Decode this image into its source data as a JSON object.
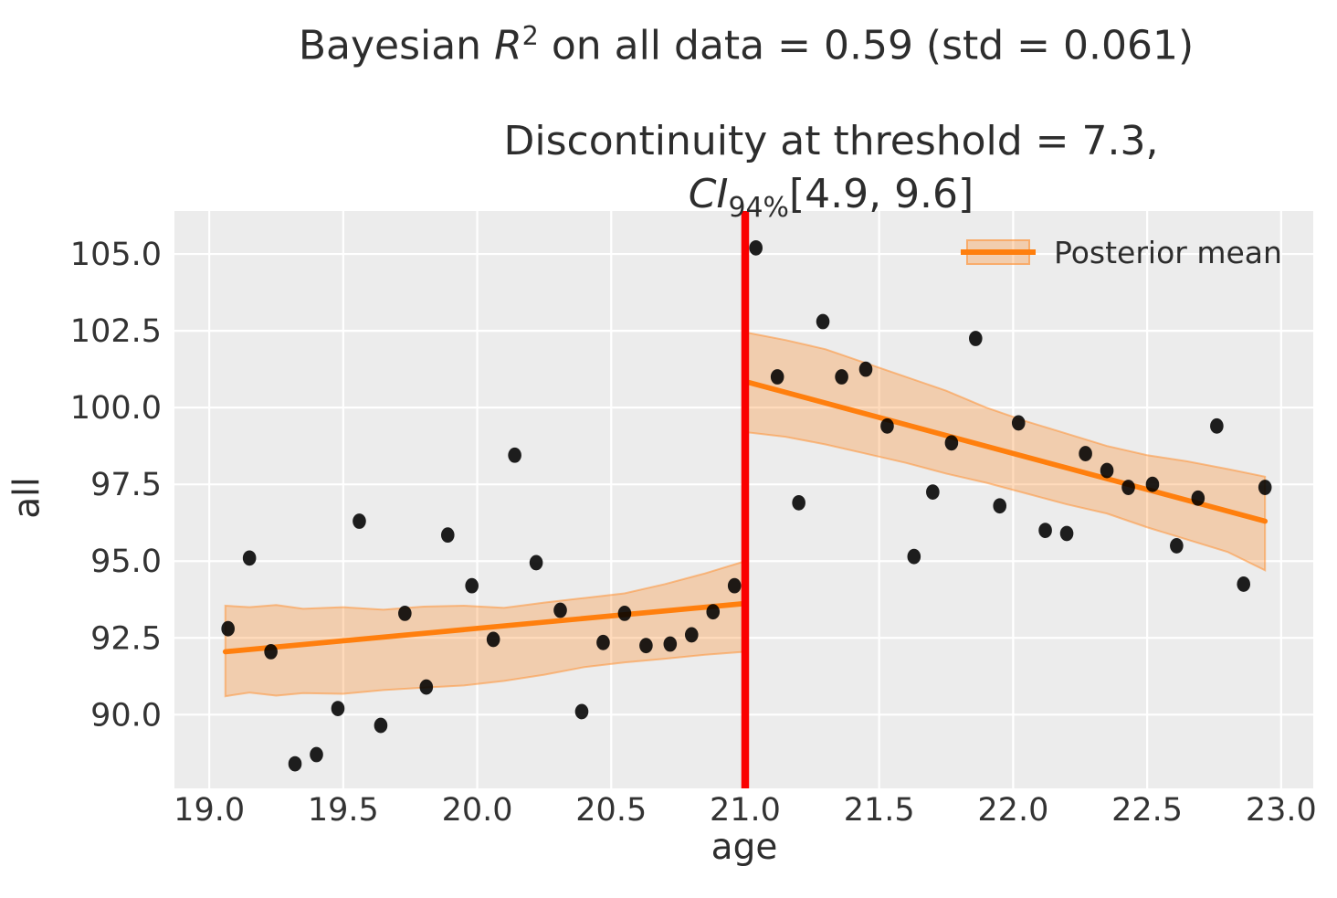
{
  "title": {
    "prefix": "Bayesian ",
    "variable": "R",
    "exponent": "2",
    "suffix": " on all data = 0.59 (std = 0.061)"
  },
  "subtitle": {
    "line1": "Discontinuity at threshold = 7.3,",
    "ci_prefix": "CI",
    "ci_subscript": "94%",
    "ci_values": "[4.9, 9.6]"
  },
  "legend": {
    "label": "Posterior mean"
  },
  "axes": {
    "x_label": "age",
    "y_label": "all"
  },
  "colors": {
    "figure_bg": "#ffffff",
    "plot_bg": "#ececec",
    "grid": "#ffffff",
    "scatter": "#000000",
    "mean_line": "#ff7f0e",
    "band_fill": "rgba(255,127,14,0.28)",
    "band_edge": "rgba(255,140,40,0.5)",
    "threshold": "#fa0000",
    "text": "#2d2d2d",
    "tick_text": "#333333"
  },
  "chart_data": {
    "type": "scatter",
    "title": "Bayesian R^2 on all data = 0.59 (std = 0.061)",
    "subtitle": "Discontinuity at threshold = 7.3, CI_94% [4.9, 9.6]",
    "xlabel": "age",
    "ylabel": "all",
    "legend": [
      "Posterior mean"
    ],
    "grid": true,
    "xlim": [
      18.87,
      23.12
    ],
    "ylim": [
      87.6,
      106.4
    ],
    "x_ticks": [
      19.0,
      19.5,
      20.0,
      20.5,
      21.0,
      21.5,
      22.0,
      22.5,
      23.0
    ],
    "x_tick_labels": [
      "19.0",
      "19.5",
      "20.0",
      "20.5",
      "21.0",
      "21.5",
      "22.0",
      "22.5",
      "23.0"
    ],
    "y_ticks": [
      90.0,
      92.5,
      95.0,
      97.5,
      100.0,
      102.5,
      105.0
    ],
    "y_tick_labels": [
      "90.0",
      "92.5",
      "95.0",
      "97.5",
      "100.0",
      "102.5",
      "105.0"
    ],
    "threshold_x": 21.0,
    "points": [
      [
        19.07,
        92.8
      ],
      [
        19.15,
        95.1
      ],
      [
        19.23,
        92.05
      ],
      [
        19.32,
        88.4
      ],
      [
        19.4,
        88.7
      ],
      [
        19.48,
        90.2
      ],
      [
        19.56,
        96.3
      ],
      [
        19.64,
        89.65
      ],
      [
        19.73,
        93.3
      ],
      [
        19.81,
        90.9
      ],
      [
        19.89,
        95.85
      ],
      [
        19.98,
        94.2
      ],
      [
        20.06,
        92.45
      ],
      [
        20.14,
        98.45
      ],
      [
        20.22,
        94.95
      ],
      [
        20.31,
        93.4
      ],
      [
        20.39,
        90.1
      ],
      [
        20.47,
        92.35
      ],
      [
        20.55,
        93.3
      ],
      [
        20.63,
        92.25
      ],
      [
        20.72,
        92.3
      ],
      [
        20.8,
        92.6
      ],
      [
        20.88,
        93.35
      ],
      [
        20.96,
        94.2
      ],
      [
        21.04,
        105.2
      ],
      [
        21.12,
        101.0
      ],
      [
        21.2,
        96.9
      ],
      [
        21.29,
        102.8
      ],
      [
        21.36,
        101.0
      ],
      [
        21.45,
        101.25
      ],
      [
        21.53,
        99.4
      ],
      [
        21.63,
        95.15
      ],
      [
        21.7,
        97.25
      ],
      [
        21.77,
        98.85
      ],
      [
        21.86,
        102.25
      ],
      [
        21.95,
        96.8
      ],
      [
        22.02,
        99.5
      ],
      [
        22.12,
        96.0
      ],
      [
        22.2,
        95.9
      ],
      [
        22.27,
        98.5
      ],
      [
        22.35,
        97.95
      ],
      [
        22.43,
        97.4
      ],
      [
        22.52,
        97.5
      ],
      [
        22.61,
        95.5
      ],
      [
        22.69,
        97.05
      ],
      [
        22.76,
        99.4
      ],
      [
        22.86,
        94.25
      ],
      [
        22.94,
        97.4
      ]
    ],
    "segments": [
      {
        "name": "pre-threshold",
        "line": {
          "x": [
            19.06,
            21.0
          ],
          "y": [
            92.05,
            93.62
          ]
        },
        "band": {
          "x": [
            19.06,
            19.15,
            19.25,
            19.35,
            19.5,
            19.65,
            19.8,
            19.95,
            20.1,
            20.25,
            20.4,
            20.55,
            20.7,
            20.85,
            21.0
          ],
          "upper": [
            93.55,
            93.5,
            93.57,
            93.45,
            93.5,
            93.42,
            93.52,
            93.55,
            93.48,
            93.65,
            93.8,
            93.95,
            94.25,
            94.6,
            95.0
          ],
          "lower": [
            90.6,
            90.72,
            90.62,
            90.7,
            90.68,
            90.8,
            90.88,
            90.95,
            91.1,
            91.3,
            91.55,
            91.7,
            91.82,
            91.95,
            92.05
          ]
        }
      },
      {
        "name": "post-threshold",
        "line": {
          "x": [
            21.0,
            22.94
          ],
          "y": [
            100.85,
            96.3
          ]
        },
        "band": {
          "x": [
            21.0,
            21.15,
            21.3,
            21.45,
            21.6,
            21.75,
            21.9,
            22.05,
            22.2,
            22.35,
            22.5,
            22.65,
            22.8,
            22.94
          ],
          "upper": [
            102.45,
            102.2,
            101.9,
            101.45,
            101.0,
            100.55,
            100.0,
            99.55,
            99.15,
            98.75,
            98.45,
            98.25,
            98.0,
            97.75
          ],
          "lower": [
            99.2,
            99.05,
            98.8,
            98.5,
            98.2,
            97.85,
            97.55,
            97.2,
            96.85,
            96.55,
            96.1,
            95.7,
            95.3,
            94.7
          ]
        }
      }
    ]
  }
}
